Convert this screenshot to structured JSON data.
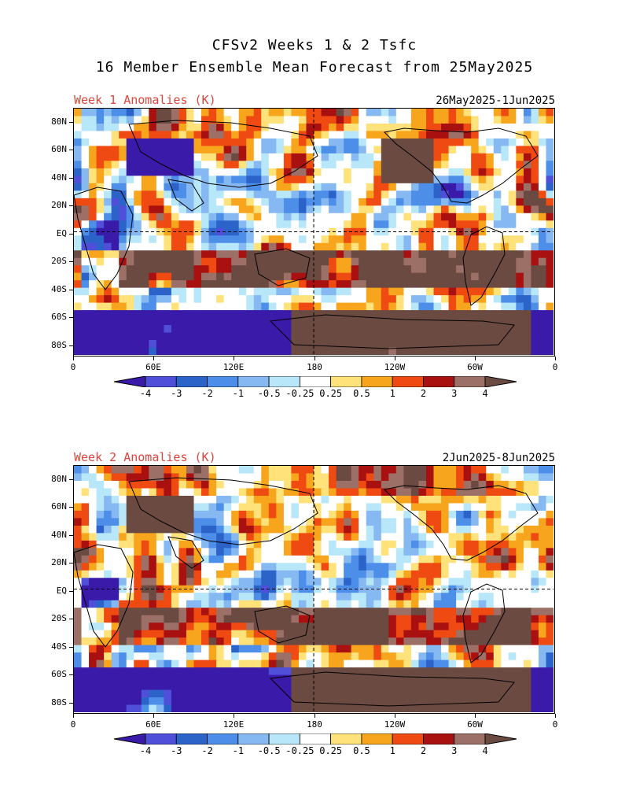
{
  "title_line1": "CFSv2 Weeks 1 & 2 Tsfc",
  "title_line2": "16 Member Ensemble Mean Forecast from 25May2025",
  "panels": [
    {
      "title": "Week 1 Anomalies (K)",
      "dates": "26May2025-1Jun2025"
    },
    {
      "title": "Week 2 Anomalies (K)",
      "dates": "2Jun2025-8Jun2025"
    }
  ],
  "lat_labels": [
    "80N",
    "60N",
    "40N",
    "20N",
    "EQ",
    "20S",
    "40S",
    "60S",
    "80S"
  ],
  "lon_labels": [
    "0",
    "60E",
    "120E",
    "180",
    "120W",
    "60W",
    "0"
  ],
  "colorbar": {
    "labels": [
      "-4",
      "-3",
      "-2",
      "-1",
      "-0.5",
      "-0.25",
      "0.25",
      "0.5",
      "1",
      "2",
      "3",
      "4"
    ],
    "colors": [
      "#3a1aa8",
      "#4f4fd9",
      "#2b63c9",
      "#4c8ee8",
      "#86b9f2",
      "#b7e7f8",
      "#ffffff",
      "#ffe27a",
      "#f7a51c",
      "#ee4a12",
      "#a91111",
      "#9c7066",
      "#6b4a42"
    ]
  }
}
